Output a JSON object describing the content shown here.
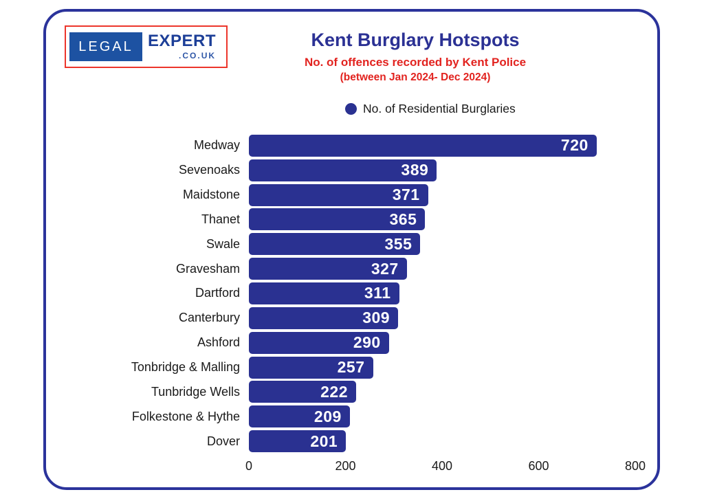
{
  "logo": {
    "legal": "LEGAL",
    "expert": "EXPERT",
    "couk": ".CO.UK"
  },
  "header": {
    "title": "Kent Burglary Hotspots",
    "subtitle1": "No. of offences recorded by Kent Police",
    "subtitle2": "(between Jan 2024- Dec 2024)"
  },
  "legend": {
    "label": "No. of Residential Burglaries"
  },
  "chart_data": {
    "type": "bar",
    "orientation": "horizontal",
    "title": "Kent Burglary Hotspots",
    "series_name": "No. of Residential Burglaries",
    "categories": [
      "Medway",
      "Sevenoaks",
      "Maidstone",
      "Thanet",
      "Swale",
      "Gravesham",
      "Dartford",
      "Canterbury",
      "Ashford",
      "Tonbridge & Malling",
      "Tunbridge Wells",
      "Folkestone & Hythe",
      "Dover"
    ],
    "values": [
      720,
      389,
      371,
      365,
      355,
      327,
      311,
      309,
      290,
      257,
      222,
      209,
      201
    ],
    "xlim": [
      0,
      800
    ],
    "x_ticks": [
      0,
      200,
      400,
      600,
      800
    ],
    "grid": false,
    "legend_position": "top",
    "bar_color": "#2a3191",
    "value_label_color": "#ffffff"
  },
  "colors": {
    "navy": "#2b3194",
    "red": "#e2231f",
    "bar": "#2a3191",
    "card_border": "#2b339b",
    "logo_blue": "#1d52a2",
    "logo_text_blue": "#1d3f98",
    "logo_red": "#ec352b",
    "text": "#1a1a1a"
  }
}
